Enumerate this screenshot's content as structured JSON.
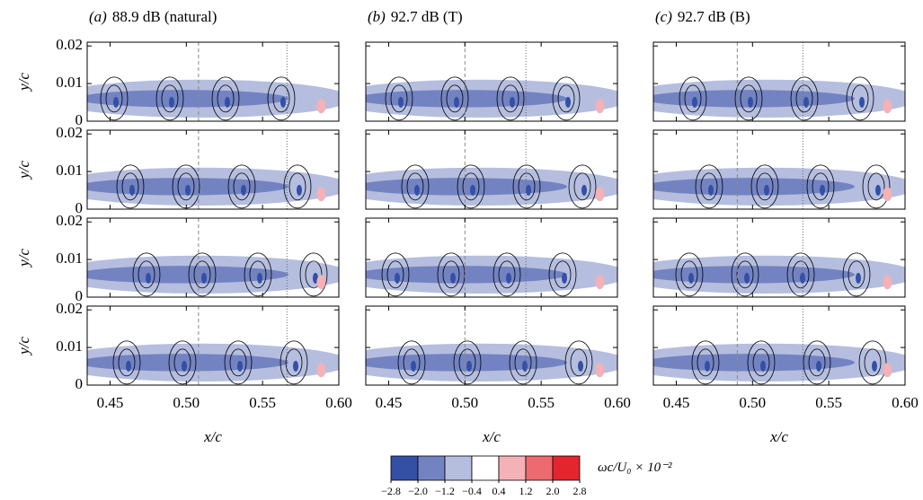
{
  "figure": {
    "columns": [
      {
        "label": "(a)",
        "title": "88.9 dB (natural)",
        "dashed_x": 0.508,
        "dotted_x": 0.566
      },
      {
        "label": "(b)",
        "title": "92.7 dB (T)",
        "dashed_x": 0.5,
        "dotted_x": 0.54
      },
      {
        "label": "(c)",
        "title": "92.7 dB (B)",
        "dashed_x": 0.49,
        "dotted_x": 0.533
      }
    ],
    "rows": 4,
    "ylabel": "y/c",
    "xlabel": "x/c",
    "xlim": [
      0.435,
      0.6
    ],
    "ylim": [
      0,
      0.021
    ],
    "xticks": [
      0.45,
      {
        "value": 0.5,
        "label": "0.50"
      },
      0.55,
      {
        "value": 0.6,
        "label": "0.60"
      }
    ],
    "yticks": [
      0,
      0.01,
      0.02
    ],
    "colorbar": {
      "label": "ωc/U₀ × 10⁻²",
      "ticks": [
        {
          "value": -2.8,
          "label": "−2.8"
        },
        {
          "value": -2,
          "label": "−2.0"
        },
        {
          "value": -1.2,
          "label": "−1.2"
        },
        {
          "value": -0.4,
          "label": "−0.4"
        },
        0.4,
        1.2,
        {
          "value": 2,
          "label": "2.0"
        },
        2.8
      ],
      "colors": [
        "#3350a5",
        "#7383c2",
        "#b5bedf",
        "#ffffff",
        "#f4b1b6",
        "#ec6b70",
        "#e3262e"
      ]
    }
  }
}
